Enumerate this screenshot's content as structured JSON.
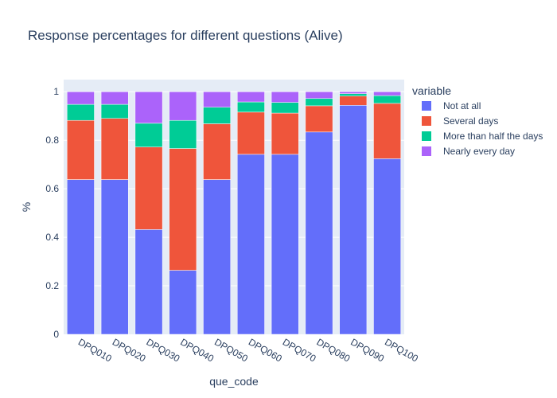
{
  "chart_data": {
    "type": "bar",
    "stacked": true,
    "title": "Response percentages for different questions (Alive)",
    "xlabel": "que_code",
    "ylabel": "%",
    "ylim": [
      0,
      1.05
    ],
    "yticks": [
      "0",
      "0.2",
      "0.4",
      "0.6",
      "0.8",
      "1"
    ],
    "grid": true,
    "legend_title": "variable",
    "legend_position": "top-right",
    "categories": [
      "DPQ010",
      "DPQ020",
      "DPQ030",
      "DPQ040",
      "DPQ050",
      "DPQ060",
      "DPQ070",
      "DPQ080",
      "DPQ090",
      "DPQ100"
    ],
    "series": [
      {
        "name": "Not at all",
        "color": "#636efa",
        "values": [
          0.638,
          0.638,
          0.432,
          0.264,
          0.638,
          0.742,
          0.742,
          0.834,
          0.944,
          0.724
        ]
      },
      {
        "name": "Several days",
        "color": "#ef553b",
        "values": [
          0.244,
          0.252,
          0.34,
          0.502,
          0.23,
          0.174,
          0.17,
          0.108,
          0.038,
          0.228
        ]
      },
      {
        "name": "More than half the days",
        "color": "#00cc96",
        "values": [
          0.066,
          0.058,
          0.098,
          0.116,
          0.068,
          0.042,
          0.044,
          0.03,
          0.01,
          0.032
        ]
      },
      {
        "name": "Nearly every day",
        "color": "#ab63fa",
        "values": [
          0.052,
          0.052,
          0.13,
          0.118,
          0.064,
          0.042,
          0.044,
          0.028,
          0.008,
          0.016
        ]
      }
    ]
  }
}
